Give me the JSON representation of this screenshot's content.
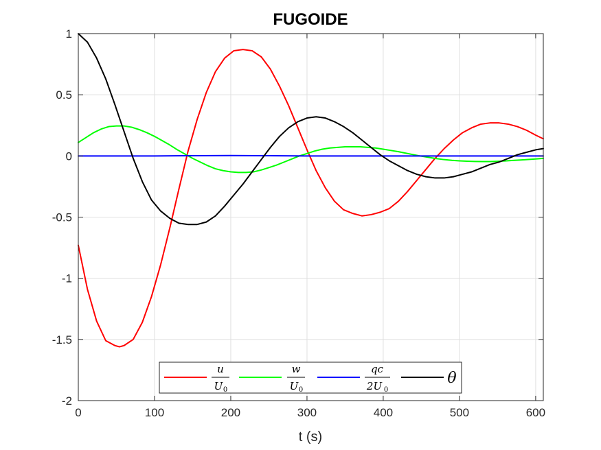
{
  "chart_data": {
    "type": "line",
    "title": "FUGOIDE",
    "xlabel": "t (s)",
    "ylabel": "",
    "xlim": [
      0,
      610
    ],
    "ylim": [
      -2,
      1
    ],
    "grid": true,
    "legend_placement": "bottom-center",
    "xticks": [
      0,
      100,
      200,
      300,
      400,
      500,
      600
    ],
    "yticks": [
      -2,
      -1.5,
      -1,
      -0.5,
      0,
      0.5,
      1
    ],
    "xtick_labels": [
      "0",
      "100",
      "200",
      "300",
      "400",
      "500",
      "600"
    ],
    "ytick_labels": [
      "-2",
      "-1.5",
      "-1",
      "-0.5",
      "0",
      "0.5",
      "1"
    ],
    "series": [
      {
        "name": "u/U0",
        "legend": {
          "num": "u",
          "den": "U",
          "den_sub": "0"
        },
        "color": "#ff0000",
        "x": [
          0,
          12,
          24,
          36,
          48,
          54,
          60,
          72,
          84,
          96,
          108,
          120,
          132,
          144,
          156,
          168,
          180,
          192,
          204,
          216,
          228,
          240,
          252,
          264,
          276,
          288,
          300,
          312,
          324,
          336,
          348,
          360,
          372,
          384,
          396,
          408,
          420,
          432,
          444,
          456,
          468,
          480,
          492,
          504,
          516,
          528,
          540,
          552,
          564,
          576,
          588,
          600,
          610
        ],
        "values": [
          -0.73,
          -1.09,
          -1.35,
          -1.51,
          -1.55,
          -1.56,
          -1.55,
          -1.5,
          -1.36,
          -1.15,
          -0.89,
          -0.59,
          -0.27,
          0.04,
          0.3,
          0.52,
          0.69,
          0.8,
          0.86,
          0.87,
          0.86,
          0.81,
          0.71,
          0.57,
          0.41,
          0.23,
          0.05,
          -0.12,
          -0.26,
          -0.37,
          -0.44,
          -0.47,
          -0.49,
          -0.48,
          -0.46,
          -0.43,
          -0.37,
          -0.29,
          -0.2,
          -0.11,
          -0.02,
          0.06,
          0.13,
          0.19,
          0.23,
          0.26,
          0.27,
          0.27,
          0.26,
          0.24,
          0.21,
          0.17,
          0.14
        ]
      },
      {
        "name": "w/U0",
        "legend": {
          "num": "w",
          "den": "U",
          "den_sub": "0"
        },
        "color": "#00ff00",
        "x": [
          0,
          10,
          20,
          30,
          40,
          50,
          60,
          70,
          80,
          90,
          100,
          110,
          120,
          130,
          140,
          150,
          160,
          170,
          180,
          190,
          200,
          210,
          220,
          230,
          240,
          250,
          260,
          270,
          280,
          290,
          300,
          310,
          320,
          330,
          340,
          350,
          360,
          370,
          380,
          390,
          400,
          410,
          420,
          430,
          440,
          450,
          460,
          470,
          480,
          490,
          500,
          510,
          520,
          530,
          540,
          550,
          560,
          570,
          580,
          590,
          600,
          610
        ],
        "values": [
          0.11,
          0.15,
          0.19,
          0.22,
          0.24,
          0.245,
          0.245,
          0.235,
          0.215,
          0.19,
          0.16,
          0.125,
          0.09,
          0.05,
          0.015,
          -0.02,
          -0.05,
          -0.08,
          -0.105,
          -0.12,
          -0.13,
          -0.135,
          -0.135,
          -0.13,
          -0.115,
          -0.095,
          -0.075,
          -0.05,
          -0.025,
          0.0,
          0.02,
          0.04,
          0.055,
          0.065,
          0.07,
          0.075,
          0.075,
          0.075,
          0.07,
          0.065,
          0.055,
          0.045,
          0.035,
          0.022,
          0.01,
          -0.002,
          -0.012,
          -0.022,
          -0.03,
          -0.036,
          -0.04,
          -0.043,
          -0.045,
          -0.046,
          -0.046,
          -0.044,
          -0.041,
          -0.037,
          -0.033,
          -0.029,
          -0.025,
          -0.02
        ]
      },
      {
        "name": "qc/2U0",
        "legend": {
          "num": "qc",
          "den": "2U",
          "den_sub": "0"
        },
        "color": "#0000ff",
        "x": [
          0,
          50,
          100,
          150,
          200,
          250,
          300,
          350,
          400,
          450,
          500,
          550,
          610
        ],
        "values": [
          0.0,
          0.0,
          0.0,
          0.002,
          0.003,
          0.002,
          0.0,
          0.0,
          0.0,
          0.0,
          0.0,
          0.0,
          0.0
        ]
      },
      {
        "name": "θ",
        "legend": {
          "symbol": "θ"
        },
        "color": "#000000",
        "x": [
          0,
          12,
          24,
          36,
          48,
          60,
          72,
          84,
          96,
          108,
          120,
          132,
          144,
          156,
          168,
          180,
          192,
          204,
          216,
          228,
          240,
          252,
          264,
          276,
          288,
          300,
          312,
          324,
          336,
          348,
          360,
          372,
          384,
          396,
          408,
          420,
          432,
          444,
          456,
          468,
          480,
          492,
          504,
          516,
          528,
          540,
          552,
          564,
          576,
          588,
          600,
          610
        ],
        "values": [
          1.0,
          0.93,
          0.8,
          0.63,
          0.42,
          0.2,
          -0.02,
          -0.21,
          -0.36,
          -0.45,
          -0.51,
          -0.55,
          -0.56,
          -0.56,
          -0.54,
          -0.49,
          -0.41,
          -0.32,
          -0.23,
          -0.13,
          -0.03,
          0.07,
          0.16,
          0.23,
          0.28,
          0.31,
          0.32,
          0.31,
          0.28,
          0.24,
          0.19,
          0.13,
          0.07,
          0.01,
          -0.04,
          -0.08,
          -0.12,
          -0.15,
          -0.17,
          -0.18,
          -0.18,
          -0.17,
          -0.15,
          -0.13,
          -0.1,
          -0.07,
          -0.05,
          -0.02,
          0.01,
          0.03,
          0.05,
          0.06
        ]
      }
    ]
  }
}
